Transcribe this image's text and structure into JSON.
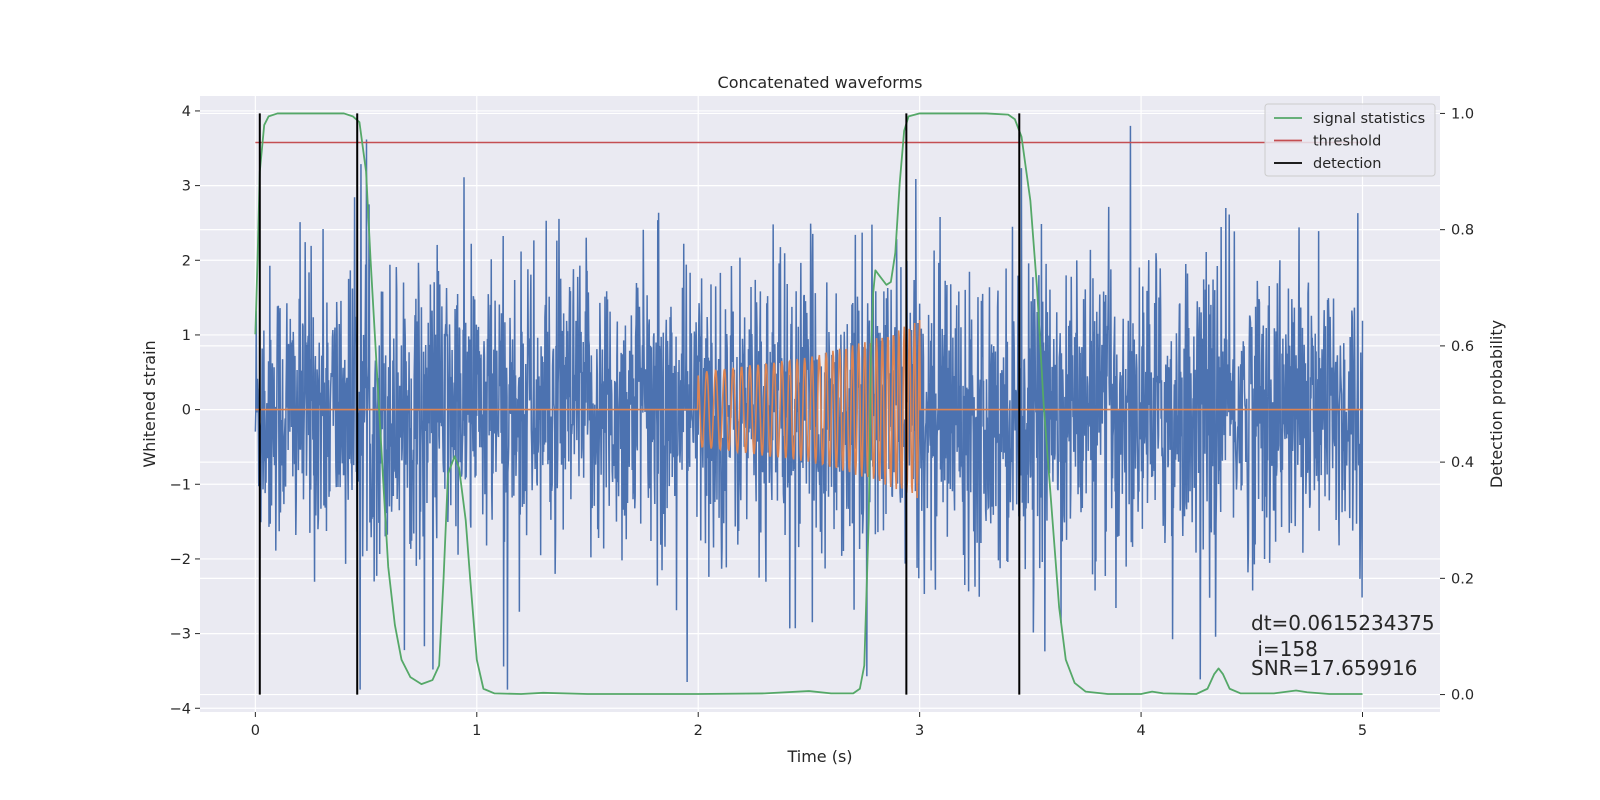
{
  "chart_data": {
    "type": "line",
    "title": "Concatenated waveforms",
    "xlabel": "Time (s)",
    "ylabel": "Whitened strain",
    "ylabel_right": "Detection probability",
    "xlim": [
      -0.25,
      5.35
    ],
    "ylim": [
      -4.05,
      4.2
    ],
    "ylim_right": [
      -0.03,
      1.03
    ],
    "x_ticks": [
      0,
      1,
      2,
      3,
      4,
      5
    ],
    "x_tick_labels": [
      "0",
      "1",
      "2",
      "3",
      "4",
      "5"
    ],
    "y_ticks": [
      -4,
      -3,
      -2,
      -1,
      0,
      1,
      2,
      3,
      4
    ],
    "y_tick_labels": [
      "−4",
      "−3",
      "−2",
      "−1",
      "0",
      "1",
      "2",
      "3",
      "4"
    ],
    "y_right_ticks": [
      0.0,
      0.2,
      0.4,
      0.6,
      0.8,
      1.0
    ],
    "y_right_tick_labels": [
      "0.0",
      "0.2",
      "0.4",
      "0.6",
      "0.8",
      "1.0"
    ],
    "grid": true,
    "legend": {
      "position": "top-right",
      "entries": [
        {
          "label": "signal statistics",
          "color": "#55a868"
        },
        {
          "label": "threshold",
          "color": "#c44e52"
        },
        {
          "label": "detection",
          "color": "#000000"
        }
      ]
    },
    "series": [
      {
        "role": "whitened-noise",
        "color": "#4c72b0",
        "x_range": [
          0,
          5
        ],
        "amplitude_peak": 3.8,
        "amplitude_typical": 1.4
      },
      {
        "role": "injected-chirp",
        "color": "#dd8452",
        "x_range": [
          0,
          5
        ],
        "chirp_start": 2.0,
        "chirp_end": 3.0,
        "amplitude_points": [
          [
            2.0,
            0.5
          ],
          [
            2.5,
            0.7
          ],
          [
            2.8,
            0.95
          ],
          [
            3.0,
            1.2
          ]
        ],
        "frequency_points": [
          [
            2.0,
            24
          ],
          [
            2.5,
            30
          ],
          [
            2.8,
            38
          ],
          [
            3.0,
            44
          ]
        ]
      },
      {
        "name": "signal statistics",
        "color": "#55a868",
        "axis": "right",
        "points": [
          [
            0.0,
            0.62
          ],
          [
            0.01,
            0.75
          ],
          [
            0.02,
            0.9
          ],
          [
            0.04,
            0.98
          ],
          [
            0.06,
            0.995
          ],
          [
            0.1,
            1.0
          ],
          [
            0.2,
            1.0
          ],
          [
            0.3,
            1.0
          ],
          [
            0.4,
            1.0
          ],
          [
            0.44,
            0.995
          ],
          [
            0.47,
            0.985
          ],
          [
            0.5,
            0.9
          ],
          [
            0.52,
            0.75
          ],
          [
            0.55,
            0.55
          ],
          [
            0.58,
            0.35
          ],
          [
            0.6,
            0.22
          ],
          [
            0.63,
            0.12
          ],
          [
            0.66,
            0.06
          ],
          [
            0.7,
            0.03
          ],
          [
            0.75,
            0.018
          ],
          [
            0.8,
            0.025
          ],
          [
            0.83,
            0.05
          ],
          [
            0.85,
            0.2
          ],
          [
            0.87,
            0.38
          ],
          [
            0.9,
            0.41
          ],
          [
            0.92,
            0.39
          ],
          [
            0.95,
            0.3
          ],
          [
            0.97,
            0.2
          ],
          [
            1.0,
            0.06
          ],
          [
            1.03,
            0.01
          ],
          [
            1.08,
            0.002
          ],
          [
            1.2,
            0.001
          ],
          [
            1.3,
            0.003
          ],
          [
            1.5,
            0.001
          ],
          [
            2.0,
            0.001
          ],
          [
            2.3,
            0.002
          ],
          [
            2.5,
            0.006
          ],
          [
            2.6,
            0.002
          ],
          [
            2.7,
            0.002
          ],
          [
            2.73,
            0.01
          ],
          [
            2.75,
            0.05
          ],
          [
            2.77,
            0.3
          ],
          [
            2.78,
            0.58
          ],
          [
            2.79,
            0.69
          ],
          [
            2.8,
            0.73
          ],
          [
            2.82,
            0.72
          ],
          [
            2.85,
            0.705
          ],
          [
            2.87,
            0.71
          ],
          [
            2.89,
            0.76
          ],
          [
            2.91,
            0.88
          ],
          [
            2.93,
            0.97
          ],
          [
            2.95,
            0.995
          ],
          [
            3.0,
            1.0
          ],
          [
            3.3,
            1.0
          ],
          [
            3.4,
            0.998
          ],
          [
            3.43,
            0.99
          ],
          [
            3.46,
            0.96
          ],
          [
            3.5,
            0.85
          ],
          [
            3.53,
            0.7
          ],
          [
            3.56,
            0.5
          ],
          [
            3.6,
            0.3
          ],
          [
            3.63,
            0.15
          ],
          [
            3.66,
            0.06
          ],
          [
            3.7,
            0.02
          ],
          [
            3.75,
            0.005
          ],
          [
            3.85,
            0.001
          ],
          [
            4.0,
            0.001
          ],
          [
            4.05,
            0.005
          ],
          [
            4.1,
            0.002
          ],
          [
            4.25,
            0.001
          ],
          [
            4.3,
            0.01
          ],
          [
            4.33,
            0.035
          ],
          [
            4.35,
            0.045
          ],
          [
            4.37,
            0.035
          ],
          [
            4.4,
            0.01
          ],
          [
            4.45,
            0.002
          ],
          [
            4.6,
            0.002
          ],
          [
            4.7,
            0.007
          ],
          [
            4.75,
            0.004
          ],
          [
            4.85,
            0.001
          ],
          [
            5.0,
            0.001
          ]
        ]
      },
      {
        "name": "threshold",
        "color": "#c44e52",
        "axis": "right",
        "x_range": [
          0,
          5
        ],
        "value": 0.95
      },
      {
        "name": "detection",
        "color": "#000000",
        "axis": "right",
        "x": [
          0.02,
          0.46,
          2.94,
          3.45
        ],
        "y_range": [
          0,
          1
        ]
      }
    ],
    "annotations": [
      "dt=0.0615234375",
      " i=158",
      "SNR=17.659916"
    ]
  }
}
